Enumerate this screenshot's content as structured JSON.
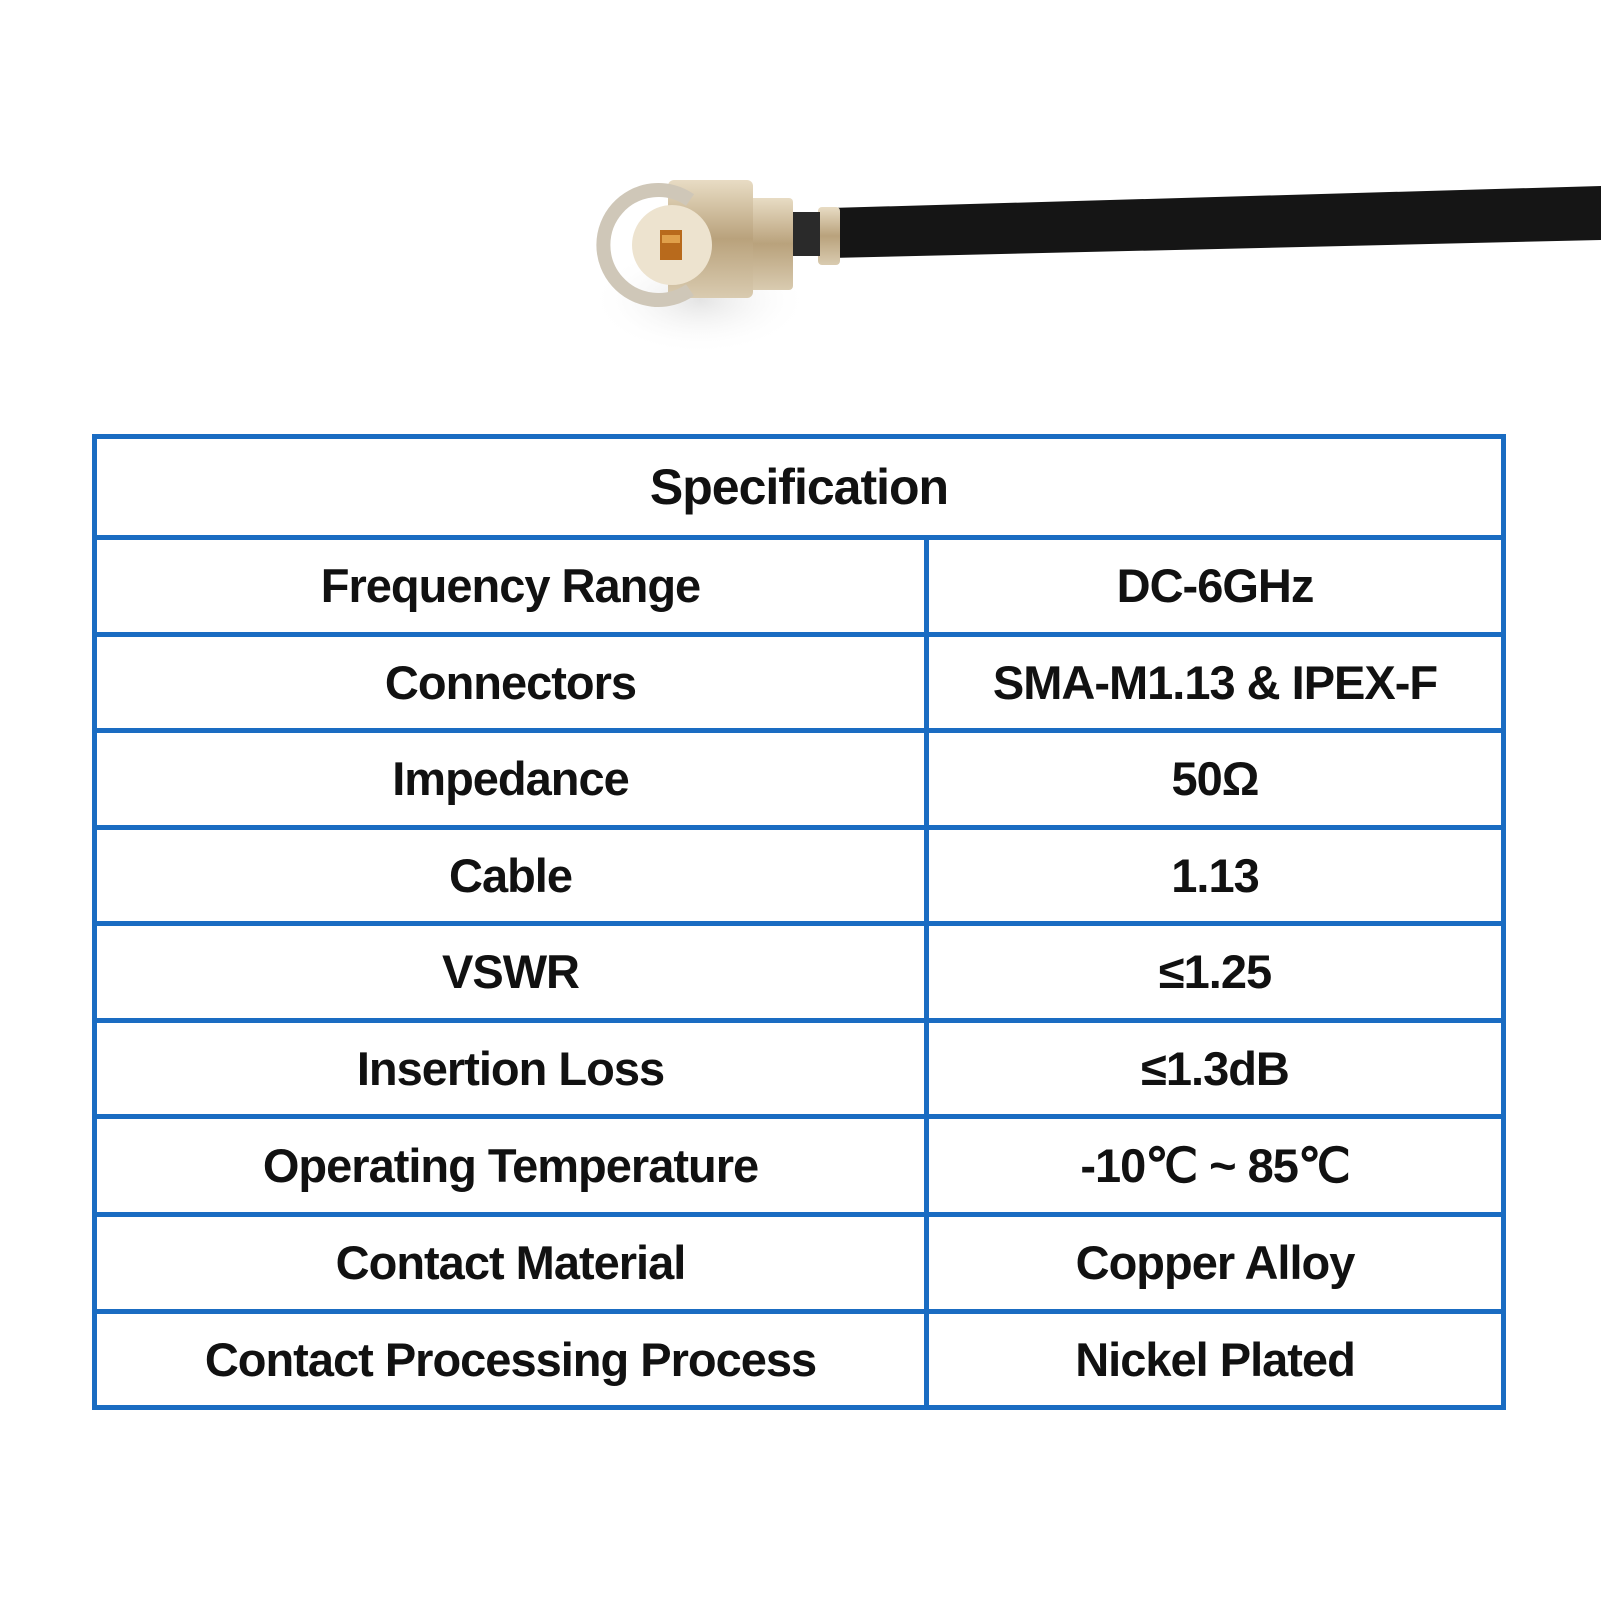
{
  "product_image": {
    "subject": "IPEX-F connector with 1.13 cable",
    "cable_color": "#111111",
    "connector_color": "#c9b79a"
  },
  "table": {
    "border_color": "#1a6cc2",
    "title": "Specification",
    "rows": [
      {
        "label": "Frequency Range",
        "value": "DC-6GHz"
      },
      {
        "label": "Connectors",
        "value": "SMA-M1.13 & IPEX-F"
      },
      {
        "label": "Impedance",
        "value": "50Ω"
      },
      {
        "label": "Cable",
        "value": "1.13"
      },
      {
        "label": "VSWR",
        "value": "≤1.25"
      },
      {
        "label": "Insertion Loss",
        "value": "≤1.3dB"
      },
      {
        "label": "Operating Temperature",
        "value": "-10℃ ~ 85℃"
      },
      {
        "label": "Contact Material",
        "value": "Copper Alloy"
      },
      {
        "label": "Contact Processing Process",
        "value": "Nickel Plated"
      }
    ]
  }
}
